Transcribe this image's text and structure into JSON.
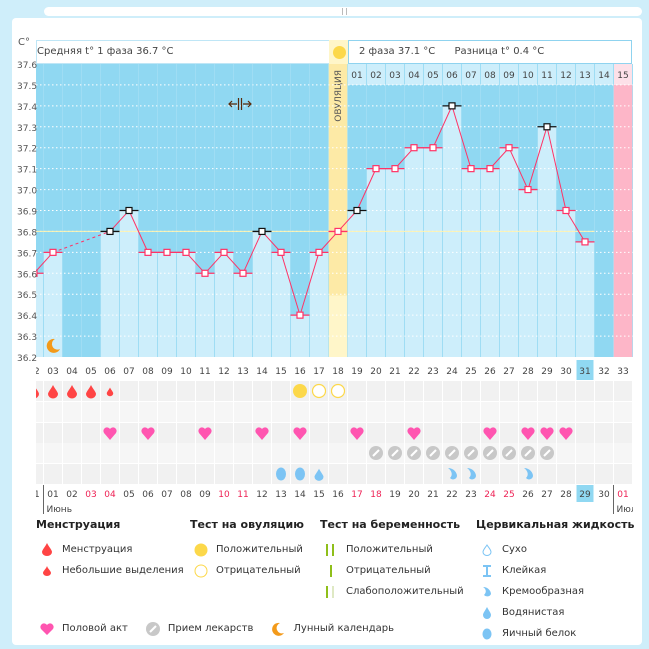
{
  "axis_unit": "C°",
  "y_ticks": [
    "37.6",
    "37.5",
    "37.4",
    "37.3",
    "37.2",
    "37.1",
    "37.0",
    "36.9",
    "36.8",
    "36.7",
    "36.6",
    "36.5",
    "36.4",
    "36.3",
    "36.2"
  ],
  "stats": {
    "phase1": "Средняя t° 1 фаза 36.7 °C",
    "phase2": "2 фаза 37.1 °C",
    "difference": "Разница t° 0.4 °C"
  },
  "ovulation_label": "ОВУЛЯЦИЯ",
  "ovulation_day": 18,
  "coverline": 36.8,
  "cycle_days": [
    2,
    3,
    4,
    5,
    6,
    7,
    8,
    9,
    10,
    11,
    12,
    13,
    14,
    15,
    16,
    17,
    18,
    19,
    20,
    21,
    22,
    23,
    24,
    25,
    26,
    27,
    28,
    29,
    30,
    31,
    32,
    33
  ],
  "highlight_cycle_day": 31,
  "phase2_days": [
    "01",
    "02",
    "03",
    "04",
    "05",
    "06",
    "07",
    "08",
    "09",
    "10",
    "11",
    "12",
    "13",
    "14",
    "15"
  ],
  "next_cycle_day": 33,
  "chart_data": {
    "type": "bar",
    "ylim": [
      36.2,
      37.6
    ],
    "ylabel": "C°",
    "temperatures": {
      "2": 36.6,
      "3": 36.7,
      "6": 36.8,
      "7": 36.9,
      "8": 36.7,
      "9": 36.7,
      "10": 36.7,
      "11": 36.6,
      "12": 36.7,
      "13": 36.6,
      "14": 36.8,
      "15": 36.7,
      "16": 36.4,
      "17": 36.7,
      "18": 36.8,
      "19": 36.9,
      "20": 37.1,
      "21": 37.1,
      "22": 37.2,
      "23": 37.2,
      "24": 37.4,
      "25": 37.1,
      "26": 37.1,
      "27": 37.2,
      "28": 37.0,
      "29": 37.3,
      "30": 36.9,
      "31": 36.75
    },
    "black_markers": [
      6,
      7,
      14,
      19,
      24,
      29
    ],
    "dashed_gap": [
      3,
      6
    ]
  },
  "dates": [
    "31",
    "01",
    "02",
    "03",
    "04",
    "05",
    "06",
    "07",
    "08",
    "09",
    "10",
    "11",
    "12",
    "13",
    "14",
    "15",
    "16",
    "17",
    "18",
    "19",
    "20",
    "21",
    "22",
    "23",
    "24",
    "25",
    "26",
    "27",
    "28",
    "29",
    "30",
    "01"
  ],
  "weekend_dates_idx": [
    3,
    4,
    10,
    11,
    17,
    18,
    24,
    25,
    31
  ],
  "today_idx": 29,
  "months": [
    "Июнь",
    "Июль"
  ],
  "markers": {
    "menstruation": [
      2,
      3,
      4,
      5
    ],
    "spotting": [
      6
    ],
    "ovulation_positive": [
      16
    ],
    "ovulation_negative": [
      17,
      18
    ],
    "intercourse": [
      6,
      8,
      11,
      14,
      16,
      19,
      22,
      26,
      28,
      29,
      30
    ],
    "medication": [
      20,
      21,
      22,
      23,
      24,
      25,
      26,
      27,
      28,
      29
    ],
    "egg_white": [
      15,
      16
    ],
    "watery": [
      17
    ],
    "creamy": [
      24,
      25,
      28
    ],
    "moon": [
      3
    ]
  },
  "legend": {
    "menstruation": {
      "title": "Менструация",
      "items": [
        "Менструация",
        "Небольшие выделения"
      ]
    },
    "ovulation_test": {
      "title": "Тест на овуляцию",
      "items": [
        "Положительный",
        "Отрицательный"
      ]
    },
    "pregnancy_test": {
      "title": "Тест на беременность",
      "items": [
        "Положительный",
        "Отрицательный",
        "Слабоположительный"
      ]
    },
    "cervical_fluid": {
      "title": "Цервикальная жидкость",
      "items": [
        "Сухо",
        "Клейкая",
        "Кремообразная",
        "Водянистая",
        "Яичный белок"
      ]
    },
    "other": [
      "Половой акт",
      "Прием лекарств",
      "Лунный календарь"
    ]
  },
  "colors": {
    "bg_dark": "#90d8f2",
    "bar": "#cdeefb",
    "line": "#ff3366",
    "ovulation": "#fdeaa6",
    "next_cycle": "#fdb6c8",
    "heart": "#ff55b0",
    "drop": "#f44",
    "fluid": "#7cc4f4",
    "pill": "#c8c8c8",
    "sun": "#fcd84a",
    "moon": "#f39a1a",
    "green": "#8fbf1a"
  }
}
